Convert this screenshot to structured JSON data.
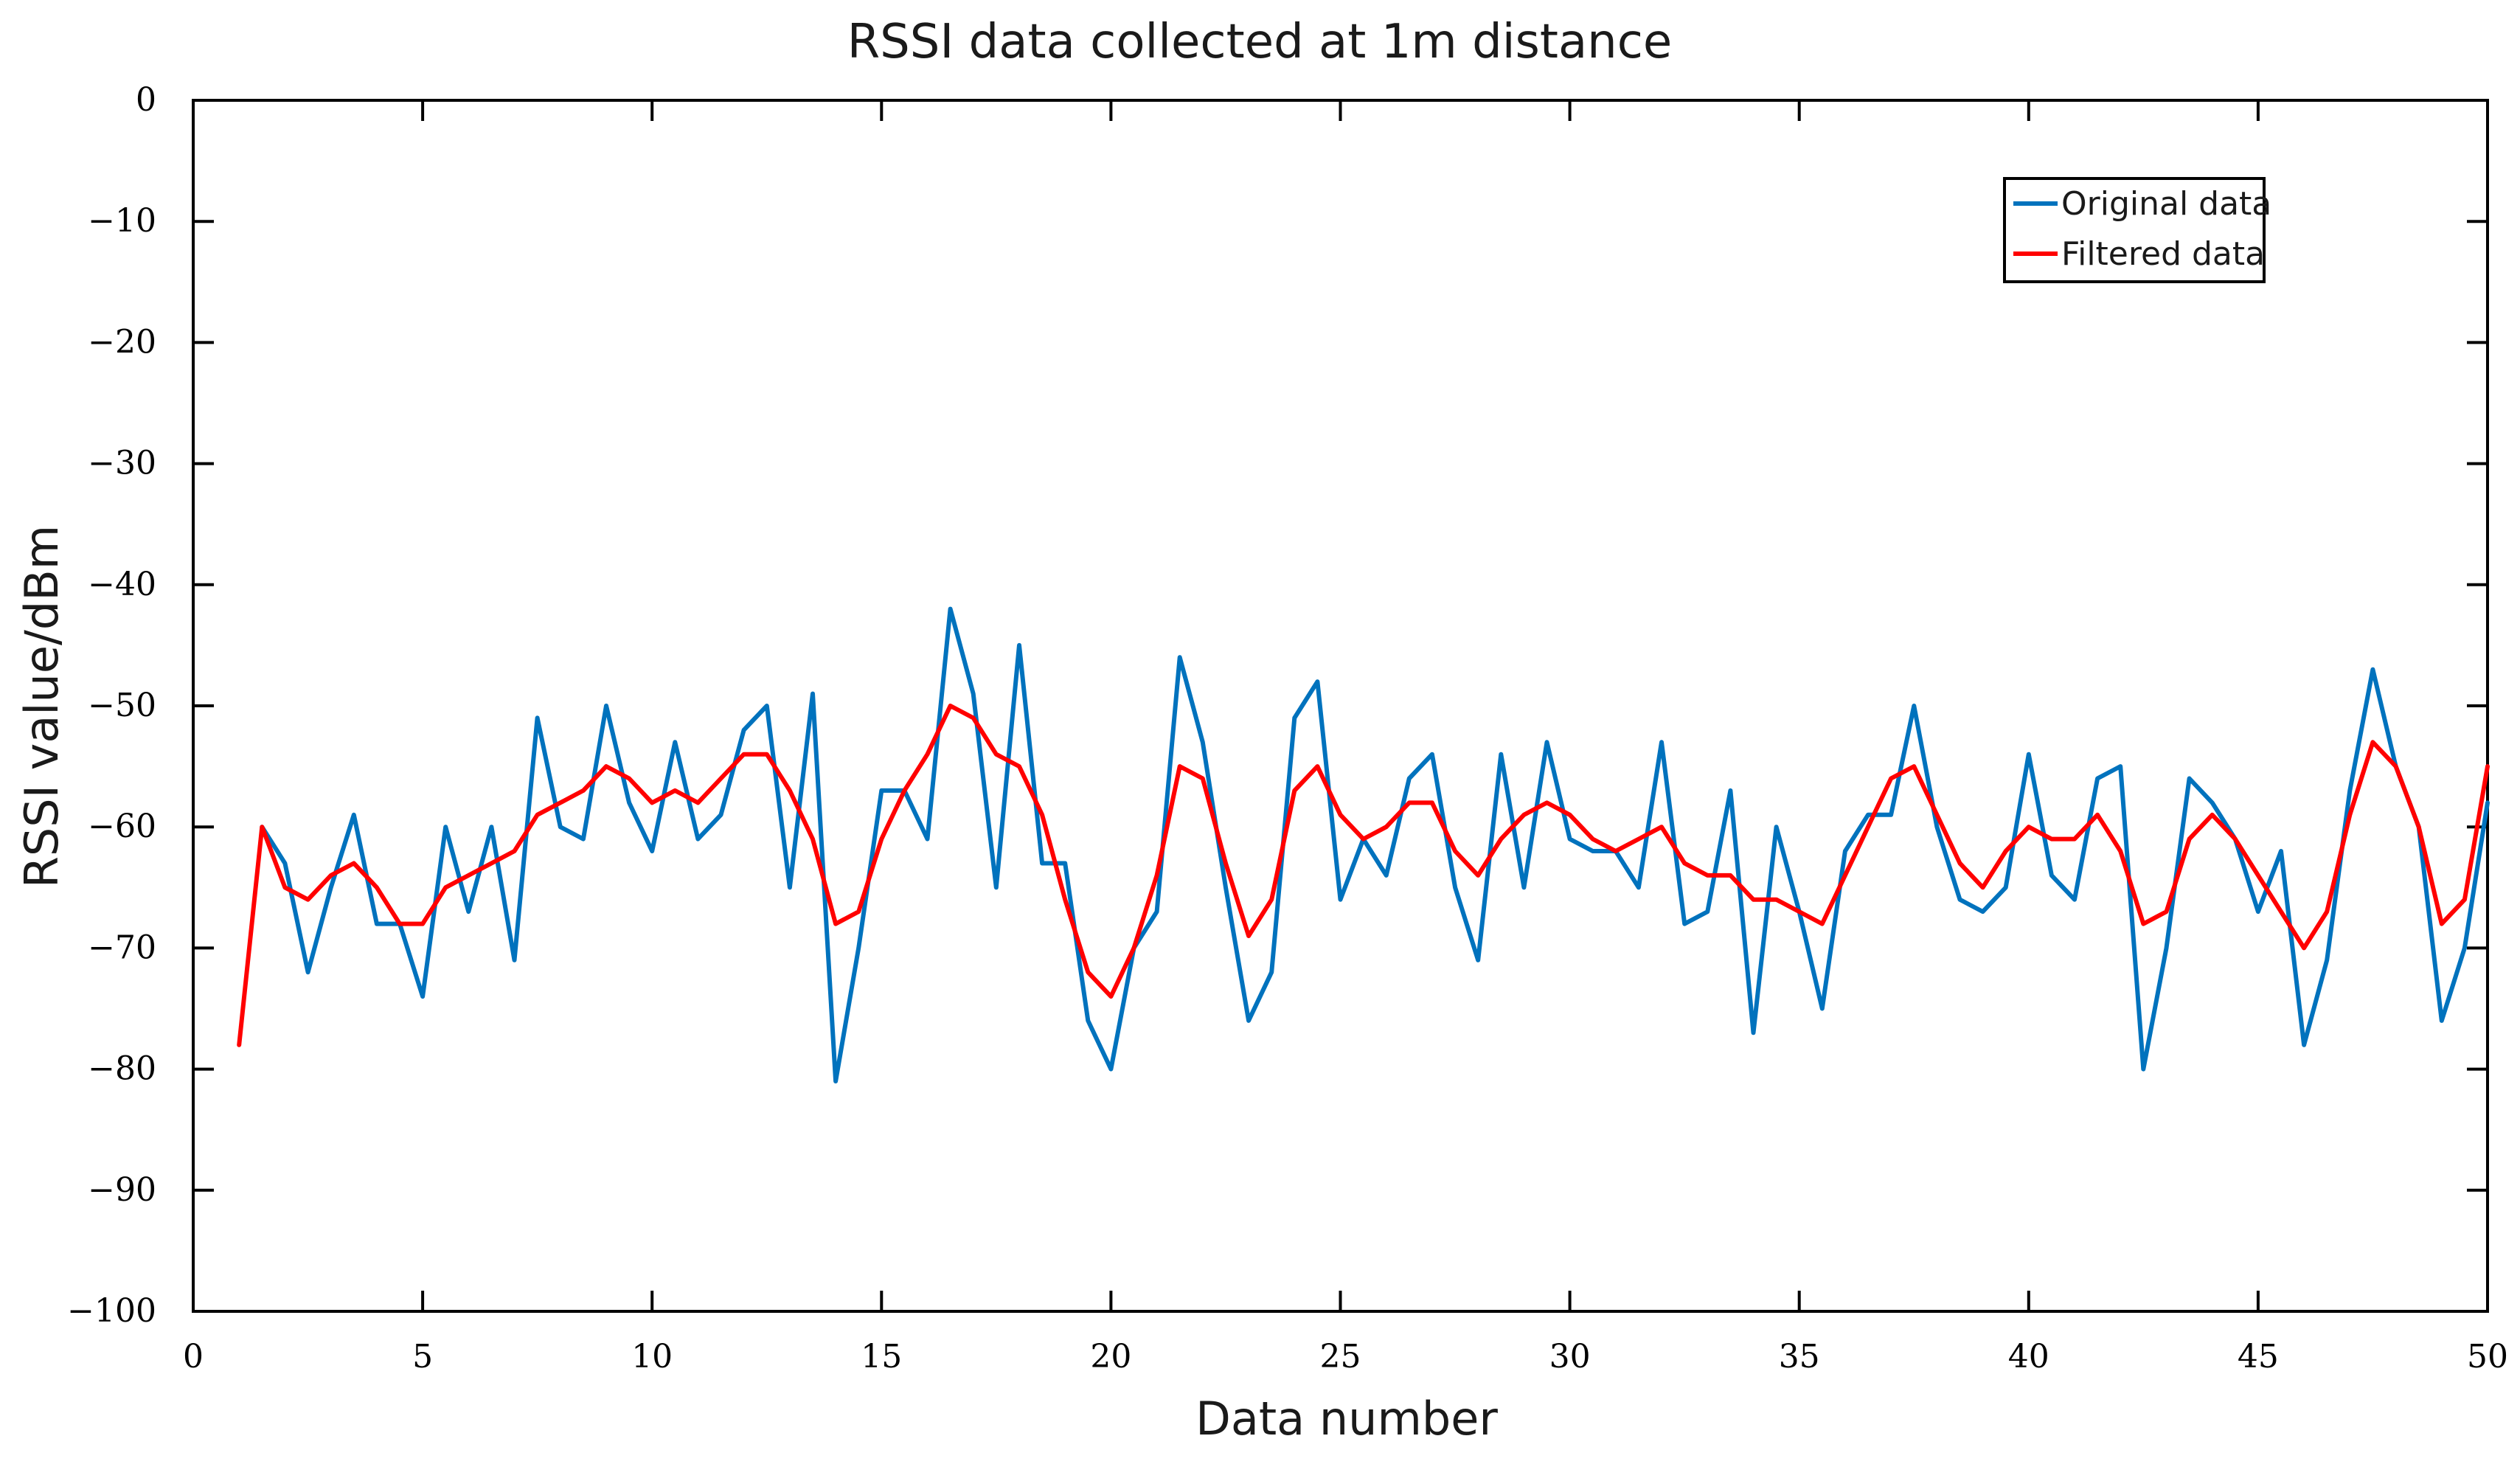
{
  "chart_data": {
    "type": "line",
    "title": "RSSI data collected at 1m distance",
    "xlabel": "Data number",
    "ylabel": "RSSI value/dBm",
    "xlim": [
      0,
      50
    ],
    "ylim": [
      -100,
      0
    ],
    "x_ticks": [
      0,
      5,
      10,
      15,
      20,
      25,
      30,
      35,
      40,
      45,
      50
    ],
    "y_ticks": [
      0,
      -10,
      -20,
      -30,
      -40,
      -50,
      -60,
      -70,
      -80,
      -90,
      -100
    ],
    "x_tick_labels": [
      "0",
      "5",
      "10",
      "15",
      "20",
      "25",
      "30",
      "35",
      "40",
      "45",
      "50"
    ],
    "y_tick_labels": [
      "0",
      "−10",
      "−20",
      "−30",
      "−40",
      "−50",
      "−60",
      "−70",
      "−80",
      "−90",
      "−100"
    ],
    "grid": false,
    "legend": {
      "position": "top-right"
    },
    "series": [
      {
        "name": "Original data",
        "color": "#0072BD",
        "x": [
          1.5,
          2.0,
          2.5,
          3.0,
          3.5,
          4.0,
          4.5,
          5.0,
          5.5,
          6.0,
          6.5,
          7.0,
          7.5,
          8.0,
          8.5,
          9.0,
          9.5,
          10.0,
          10.5,
          11.0,
          11.5,
          12.0,
          12.5,
          13.0,
          13.5,
          14.0,
          14.5,
          15.0,
          15.5,
          16.0,
          16.5,
          17.0,
          17.5,
          18.0,
          18.5,
          19.0,
          19.5,
          20.0,
          20.5,
          21.0,
          21.5,
          22.0,
          22.5,
          23.0,
          23.5,
          24.0,
          24.5,
          25.0,
          25.5,
          26.0,
          26.5,
          27.0,
          27.5,
          28.0,
          28.5,
          29.0,
          29.5,
          30.0,
          30.5,
          31.0,
          31.5,
          32.0,
          32.5,
          33.0,
          33.5,
          34.0,
          34.5,
          35.0,
          35.5,
          36.0,
          36.5,
          37.0,
          37.5,
          38.0,
          38.5,
          39.0,
          39.5,
          40.0,
          40.5,
          41.0,
          41.5,
          42.0,
          42.5,
          43.0,
          43.5,
          44.0,
          44.5,
          45.0,
          45.5,
          46.0,
          46.5,
          47.0,
          47.5,
          48.0,
          48.5,
          49.0,
          49.5,
          50.0
        ],
        "y": [
          -60,
          -63,
          -72,
          -65,
          -59,
          -68,
          -68,
          -74,
          -60,
          -67,
          -60,
          -71,
          -51,
          -60,
          -61,
          -50,
          -58,
          -62,
          -53,
          -61,
          -59,
          -52,
          -50,
          -65,
          -49,
          -81,
          -70,
          -57,
          -57,
          -61,
          -42,
          -49,
          -65,
          -45,
          -63,
          -63,
          -76,
          -80,
          -70,
          -67,
          -46,
          -53,
          -65,
          -76,
          -72,
          -51,
          -48,
          -66,
          -61,
          -64,
          -56,
          -54,
          -65,
          -71,
          -54,
          -65,
          -53,
          -61,
          -62,
          -62,
          -65,
          -53,
          -68,
          -67,
          -57,
          -77,
          -60,
          -67,
          -75,
          -62,
          -59,
          -59,
          -50,
          -60,
          -66,
          -67,
          -65,
          -54,
          -64,
          -66,
          -56,
          -55,
          -80,
          -70,
          -56,
          -58,
          -61,
          -67,
          -62,
          -78,
          -71,
          -57,
          -47,
          -55,
          -60,
          -76,
          -70,
          -58
        ]
      },
      {
        "name": "Filtered data",
        "color": "#FF0000",
        "x": [
          1.0,
          1.5,
          2.0,
          2.5,
          3.0,
          3.5,
          4.0,
          4.5,
          5.0,
          5.5,
          6.0,
          6.5,
          7.0,
          7.5,
          8.0,
          8.5,
          9.0,
          9.5,
          10.0,
          10.5,
          11.0,
          11.5,
          12.0,
          12.5,
          13.0,
          13.5,
          14.0,
          14.5,
          15.0,
          15.5,
          16.0,
          16.5,
          17.0,
          17.5,
          18.0,
          18.5,
          19.0,
          19.5,
          20.0,
          20.5,
          21.0,
          21.5,
          22.0,
          22.5,
          23.0,
          23.5,
          24.0,
          24.5,
          25.0,
          25.5,
          26.0,
          26.5,
          27.0,
          27.5,
          28.0,
          28.5,
          29.0,
          29.5,
          30.0,
          30.5,
          31.0,
          31.5,
          32.0,
          32.5,
          33.0,
          33.5,
          34.0,
          34.5,
          35.0,
          35.5,
          36.0,
          36.5,
          37.0,
          37.5,
          38.0,
          38.5,
          39.0,
          39.5,
          40.0,
          40.5,
          41.0,
          41.5,
          42.0,
          42.5,
          43.0,
          43.5,
          44.0,
          44.5,
          45.0,
          45.5,
          46.0,
          46.5,
          47.0,
          47.5,
          48.0,
          48.5,
          49.0,
          49.5,
          50.0
        ],
        "y": [
          -78,
          -60,
          -65,
          -66,
          -64,
          -63,
          -65,
          -68,
          -68,
          -65,
          -64,
          -63,
          -62,
          -59,
          -58,
          -57,
          -55,
          -56,
          -58,
          -57,
          -58,
          -56,
          -54,
          -54,
          -57,
          -61,
          -68,
          -67,
          -61,
          -57,
          -54,
          -50,
          -51,
          -54,
          -55,
          -59,
          -66,
          -72,
          -74,
          -70,
          -64,
          -55,
          -56,
          -63,
          -69,
          -66,
          -57,
          -55,
          -59,
          -61,
          -60,
          -58,
          -58,
          -62,
          -64,
          -61,
          -59,
          -58,
          -59,
          -61,
          -62,
          -61,
          -60,
          -63,
          -64,
          -64,
          -66,
          -66,
          -67,
          -68,
          -64,
          -60,
          -56,
          -55,
          -59,
          -63,
          -65,
          -62,
          -60,
          -61,
          -61,
          -59,
          -62,
          -68,
          -67,
          -61,
          -59,
          -61,
          -64,
          -67,
          -70,
          -67,
          -59,
          -53,
          -55,
          -60,
          -68,
          -66,
          -55
        ]
      }
    ]
  }
}
